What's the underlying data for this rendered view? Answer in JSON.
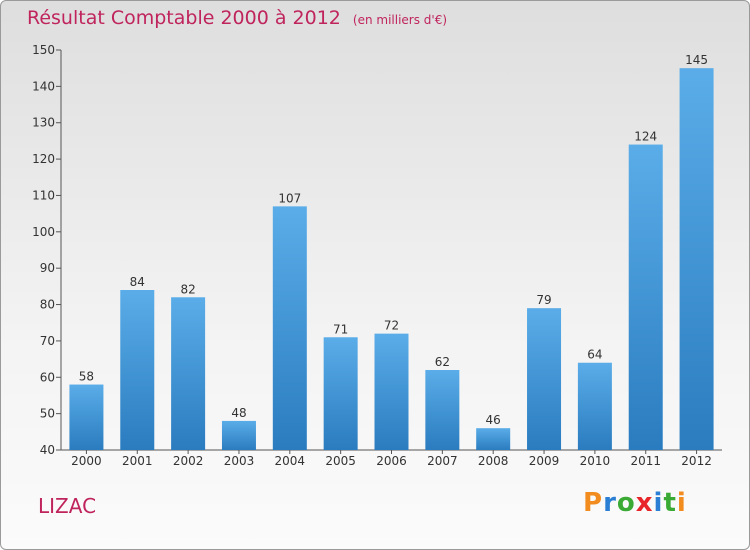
{
  "title": "Résultat Comptable 2000 à 2012",
  "subtitle": "(en milliers d'€)",
  "commune": "LIZAC",
  "logo": {
    "text": "Proxiti",
    "letters": [
      "P",
      "r",
      "o",
      "x",
      "i",
      "t",
      "i"
    ],
    "colors": [
      "#f28c1e",
      "#2a7fd4",
      "#3aaa35",
      "#e8262a",
      "#2a7fd4",
      "#3aaa35",
      "#f28c1e"
    ]
  },
  "colors": {
    "bar_light": "#5aade8",
    "bar_dark": "#2a7cbf",
    "title": "#c0245c"
  },
  "chart_data": {
    "type": "bar",
    "title": "Résultat Comptable 2000 à 2012",
    "ylabel": "(en milliers d'€)",
    "xlabel": "",
    "categories": [
      "2000",
      "2001",
      "2002",
      "2003",
      "2004",
      "2005",
      "2006",
      "2007",
      "2008",
      "2009",
      "2010",
      "2011",
      "2012"
    ],
    "values": [
      58,
      84,
      82,
      48,
      107,
      71,
      72,
      62,
      46,
      79,
      64,
      124,
      145
    ],
    "ylim": [
      40,
      150
    ],
    "yticks": [
      40,
      50,
      60,
      70,
      80,
      90,
      100,
      110,
      120,
      130,
      140,
      150
    ],
    "grid": false
  }
}
